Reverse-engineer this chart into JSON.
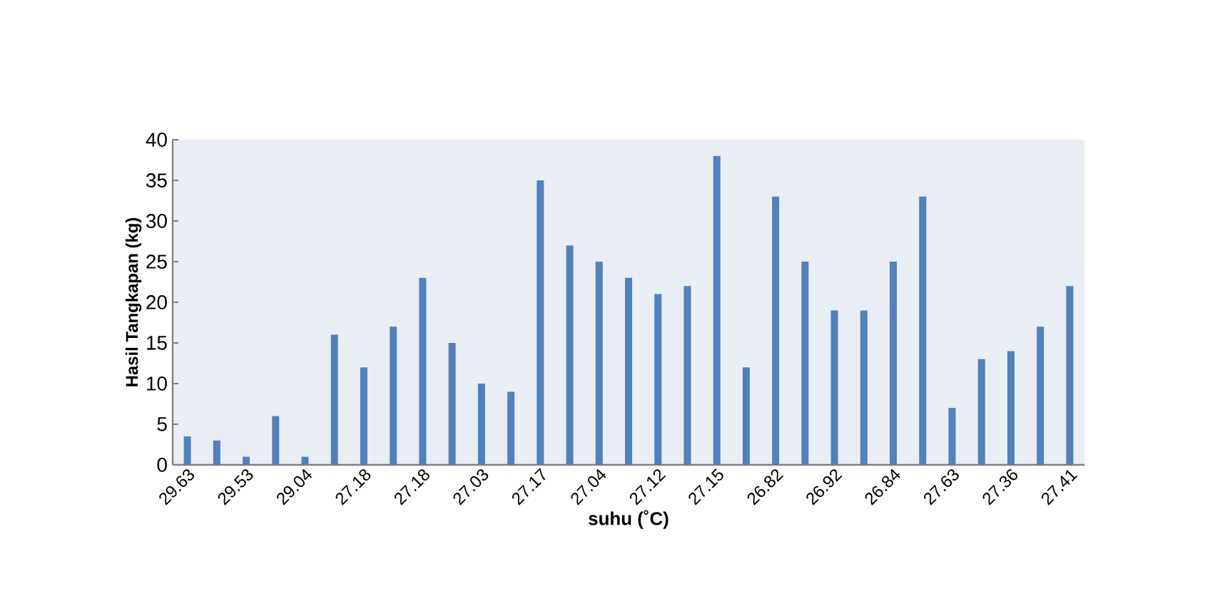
{
  "chart_data": {
    "type": "bar",
    "xlabel": "suhu (˚C)",
    "ylabel": "Hasil Tangkapan (kg)",
    "categories": [
      "29.63",
      null,
      "29.53",
      null,
      "29.04",
      null,
      "27.18",
      null,
      "27.18",
      null,
      "27.03",
      null,
      "27.17",
      null,
      "27.04",
      null,
      "27.12",
      null,
      "27.15",
      null,
      "26.82",
      null,
      "26.92",
      null,
      "26.84",
      null,
      "27.63",
      null,
      "27.36",
      null,
      "27.41"
    ],
    "values": [
      3.5,
      3,
      1,
      6,
      1,
      16,
      12,
      17,
      23,
      15,
      10,
      9,
      35,
      27,
      25,
      23,
      21,
      22,
      38,
      12,
      33,
      25,
      19,
      19,
      25,
      33,
      7,
      13,
      14,
      17,
      22
    ],
    "color": "#4f81bd",
    "ylim": [
      0,
      40
    ],
    "yticks": [
      0,
      5,
      10,
      15,
      20,
      25,
      30,
      35,
      40
    ],
    "grid": false
  }
}
